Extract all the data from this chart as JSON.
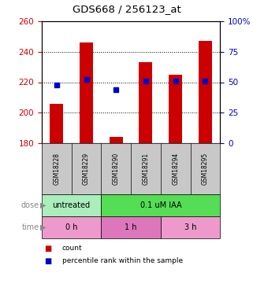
{
  "title": "GDS668 / 256123_at",
  "samples": [
    "GSM18228",
    "GSM18229",
    "GSM18290",
    "GSM18291",
    "GSM18294",
    "GSM18295"
  ],
  "bar_values": [
    206,
    246,
    184,
    233,
    225,
    247
  ],
  "bar_bottom": 180,
  "percentile_values": [
    218,
    222,
    215,
    221,
    221,
    221
  ],
  "ylim": [
    180,
    260
  ],
  "yticks": [
    180,
    200,
    220,
    240,
    260
  ],
  "right_yticks": [
    0,
    25,
    50,
    75,
    100
  ],
  "bar_color": "#cc0000",
  "percentile_color": "#0000cc",
  "dose_labels": [
    {
      "label": "untreated",
      "start": 0,
      "end": 2,
      "color": "#aaeebb"
    },
    {
      "label": "0.1 uM IAA",
      "start": 2,
      "end": 6,
      "color": "#55dd55"
    }
  ],
  "time_labels": [
    {
      "label": "0 h",
      "start": 0,
      "end": 2,
      "color": "#ee99cc"
    },
    {
      "label": "1 h",
      "start": 2,
      "end": 4,
      "color": "#dd77bb"
    },
    {
      "label": "3 h",
      "start": 4,
      "end": 6,
      "color": "#ee99cc"
    }
  ],
  "dose_arrow_label": "dose",
  "time_arrow_label": "time",
  "legend_count": "count",
  "legend_percentile": "percentile rank within the sample",
  "bg_color": "#ffffff",
  "plot_bg": "#ffffff",
  "tick_color_left": "#cc0000",
  "tick_color_right": "#0000cc",
  "sample_bg_color": "#c8c8c8"
}
